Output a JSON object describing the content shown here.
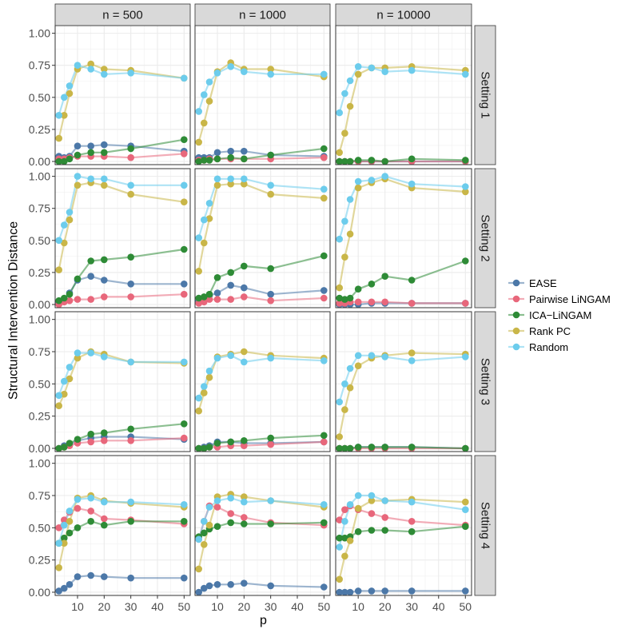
{
  "chart_data": {
    "type": "line",
    "xlabel": "p",
    "ylabel": "Structural Intervention Distance",
    "col_labels": [
      "n = 500",
      "n = 1000",
      "n = 10000"
    ],
    "row_labels": [
      "Setting 1",
      "Setting 2",
      "Setting 3",
      "Setting 4"
    ],
    "x": [
      3,
      5,
      7,
      10,
      15,
      20,
      30,
      50
    ],
    "xlim": [
      1.6,
      52.3
    ],
    "ylim": [
      -0.025,
      1.06
    ],
    "x_ticks": [
      10,
      20,
      30,
      40,
      50
    ],
    "x_tick_labels": [
      "10",
      "20",
      "30",
      "40",
      "50"
    ],
    "y_ticks": [
      0,
      0.25,
      0.5,
      0.75,
      1
    ],
    "y_tick_labels": [
      "0.00",
      "0.25",
      "0.50",
      "0.75",
      "1.00"
    ],
    "grid": true,
    "legend_position": "right",
    "series": [
      {
        "name": "EASE",
        "color": "#4C78A8"
      },
      {
        "name": "Pairwise LiNGAM",
        "color": "#E8677B"
      },
      {
        "name": "ICA−LiNGAM",
        "color": "#2E8B36"
      },
      {
        "name": "Rank PC",
        "color": "#C9B648"
      },
      {
        "name": "Random",
        "color": "#6CCCEC"
      }
    ],
    "panels": [
      [
        {
          "series": {
            "EASE": [
              0.04,
              0.03,
              0.04,
              0.12,
              0.12,
              0.13,
              0.12,
              0.08
            ],
            "Pairwise LiNGAM": [
              0.02,
              0.02,
              0.03,
              0.04,
              0.04,
              0.04,
              0.03,
              0.06
            ],
            "ICA−LiNGAM": [
              0.0,
              0.0,
              0.02,
              0.05,
              0.07,
              0.07,
              0.1,
              0.17
            ],
            "Rank PC": [
              0.18,
              0.36,
              0.53,
              0.72,
              0.76,
              0.72,
              0.71,
              0.65
            ],
            "Random": [
              0.36,
              0.5,
              0.59,
              0.75,
              0.72,
              0.68,
              0.69,
              0.65
            ]
          }
        },
        {
          "series": {
            "EASE": [
              0.03,
              0.03,
              0.03,
              0.07,
              0.08,
              0.08,
              0.05,
              0.04
            ],
            "Pairwise LiNGAM": [
              0.01,
              0.01,
              0.02,
              0.02,
              0.02,
              0.02,
              0.02,
              0.03
            ],
            "ICA−LiNGAM": [
              0.0,
              0.01,
              0.01,
              0.02,
              0.03,
              0.02,
              0.05,
              0.1
            ],
            "Rank PC": [
              0.15,
              0.3,
              0.47,
              0.7,
              0.77,
              0.72,
              0.72,
              0.66
            ],
            "Random": [
              0.39,
              0.52,
              0.62,
              0.69,
              0.74,
              0.7,
              0.68,
              0.68
            ]
          }
        },
        {
          "series": {
            "EASE": [
              0.0,
              0.0,
              0.0,
              0.0,
              0.0,
              0.0,
              0.0,
              0.0
            ],
            "Pairwise LiNGAM": [
              0.0,
              0.0,
              0.0,
              0.0,
              0.0,
              0.0,
              0.0,
              0.0
            ],
            "ICA−LiNGAM": [
              0.0,
              0.0,
              0.0,
              0.01,
              0.01,
              0.0,
              0.02,
              0.01
            ],
            "Rank PC": [
              0.07,
              0.22,
              0.43,
              0.68,
              0.73,
              0.73,
              0.74,
              0.71
            ],
            "Random": [
              0.38,
              0.53,
              0.63,
              0.74,
              0.73,
              0.7,
              0.71,
              0.68
            ]
          }
        }
      ],
      [
        {
          "series": {
            "EASE": [
              0.02,
              0.04,
              0.09,
              0.19,
              0.22,
              0.19,
              0.16,
              0.16
            ],
            "Pairwise LiNGAM": [
              0.0,
              0.02,
              0.03,
              0.04,
              0.04,
              0.06,
              0.06,
              0.08
            ],
            "ICA−LiNGAM": [
              0.03,
              0.05,
              0.08,
              0.2,
              0.34,
              0.35,
              0.37,
              0.43
            ],
            "Rank PC": [
              0.27,
              0.48,
              0.66,
              0.93,
              0.95,
              0.93,
              0.86,
              0.8
            ],
            "Random": [
              0.5,
              0.62,
              0.72,
              1.0,
              0.98,
              0.98,
              0.93,
              0.93
            ]
          }
        },
        {
          "series": {
            "EASE": [
              0.03,
              0.05,
              0.07,
              0.09,
              0.15,
              0.13,
              0.08,
              0.11
            ],
            "Pairwise LiNGAM": [
              0.01,
              0.02,
              0.04,
              0.04,
              0.04,
              0.06,
              0.03,
              0.05
            ],
            "ICA−LiNGAM": [
              0.05,
              0.06,
              0.08,
              0.21,
              0.25,
              0.3,
              0.28,
              0.38
            ],
            "Rank PC": [
              0.26,
              0.48,
              0.67,
              0.93,
              0.94,
              0.94,
              0.86,
              0.83
            ],
            "Random": [
              0.52,
              0.66,
              0.79,
              0.98,
              0.98,
              0.98,
              0.93,
              0.9
            ]
          }
        },
        {
          "series": {
            "EASE": [
              0.0,
              0.0,
              0.0,
              0.0,
              0.01,
              0.01,
              0.01,
              0.01
            ],
            "Pairwise LiNGAM": [
              0.01,
              0.01,
              0.02,
              0.02,
              0.02,
              0.02,
              0.01,
              0.01
            ],
            "ICA−LiNGAM": [
              0.05,
              0.04,
              0.05,
              0.12,
              0.16,
              0.22,
              0.19,
              0.34
            ],
            "Rank PC": [
              0.13,
              0.37,
              0.55,
              0.91,
              0.95,
              0.98,
              0.91,
              0.88
            ],
            "Random": [
              0.51,
              0.65,
              0.82,
              0.96,
              0.97,
              1.0,
              0.94,
              0.92
            ]
          }
        }
      ],
      [
        {
          "series": {
            "EASE": [
              0.0,
              0.02,
              0.03,
              0.06,
              0.08,
              0.09,
              0.09,
              0.07
            ],
            "Pairwise LiNGAM": [
              0.0,
              0.01,
              0.02,
              0.04,
              0.05,
              0.06,
              0.06,
              0.08
            ],
            "ICA−LiNGAM": [
              0.0,
              0.01,
              0.04,
              0.07,
              0.11,
              0.12,
              0.15,
              0.19
            ],
            "Rank PC": [
              0.33,
              0.42,
              0.54,
              0.7,
              0.75,
              0.73,
              0.67,
              0.66
            ],
            "Random": [
              0.41,
              0.52,
              0.63,
              0.74,
              0.74,
              0.71,
              0.67,
              0.67
            ]
          }
        },
        {
          "series": {
            "EASE": [
              0.0,
              0.01,
              0.02,
              0.05,
              0.05,
              0.04,
              0.04,
              0.05
            ],
            "Pairwise LiNGAM": [
              0.0,
              0.0,
              0.01,
              0.01,
              0.02,
              0.02,
              0.03,
              0.05
            ],
            "ICA−LiNGAM": [
              0.0,
              0.0,
              0.01,
              0.04,
              0.05,
              0.06,
              0.08,
              0.1
            ],
            "Rank PC": [
              0.29,
              0.43,
              0.55,
              0.71,
              0.73,
              0.75,
              0.72,
              0.7
            ],
            "Random": [
              0.39,
              0.48,
              0.6,
              0.7,
              0.72,
              0.67,
              0.7,
              0.68
            ]
          }
        },
        {
          "series": {
            "EASE": [
              0.0,
              0.0,
              0.0,
              0.01,
              0.01,
              0.01,
              0.01,
              0.0
            ],
            "Pairwise LiNGAM": [
              0.0,
              0.0,
              0.0,
              0.0,
              0.0,
              0.0,
              0.0,
              0.0
            ],
            "ICA−LiNGAM": [
              0.0,
              0.0,
              0.0,
              0.01,
              0.01,
              0.01,
              0.01,
              0.0
            ],
            "Rank PC": [
              0.09,
              0.3,
              0.47,
              0.64,
              0.7,
              0.72,
              0.74,
              0.73
            ],
            "Random": [
              0.36,
              0.5,
              0.62,
              0.72,
              0.72,
              0.71,
              0.68,
              0.71
            ]
          }
        }
      ],
      [
        {
          "series": {
            "EASE": [
              0.01,
              0.03,
              0.06,
              0.12,
              0.13,
              0.12,
              0.11,
              0.11
            ],
            "Pairwise LiNGAM": [
              0.5,
              0.56,
              0.62,
              0.65,
              0.63,
              0.57,
              0.56,
              0.53
            ],
            "ICA−LiNGAM": [
              0.38,
              0.42,
              0.46,
              0.5,
              0.55,
              0.52,
              0.55,
              0.55
            ],
            "Rank PC": [
              0.19,
              0.38,
              0.55,
              0.73,
              0.75,
              0.71,
              0.69,
              0.66
            ],
            "Random": [
              0.38,
              0.52,
              0.63,
              0.72,
              0.73,
              0.7,
              0.7,
              0.68
            ]
          }
        },
        {
          "series": {
            "EASE": [
              0.0,
              0.03,
              0.05,
              0.06,
              0.06,
              0.07,
              0.05,
              0.04
            ],
            "Pairwise LiNGAM": [
              0.41,
              0.55,
              0.67,
              0.66,
              0.61,
              0.58,
              0.54,
              0.52
            ],
            "ICA−LiNGAM": [
              0.43,
              0.46,
              0.49,
              0.51,
              0.54,
              0.53,
              0.53,
              0.54
            ],
            "Rank PC": [
              0.18,
              0.37,
              0.52,
              0.74,
              0.76,
              0.74,
              0.71,
              0.66
            ],
            "Random": [
              0.41,
              0.55,
              0.66,
              0.71,
              0.73,
              0.7,
              0.71,
              0.68
            ]
          }
        },
        {
          "series": {
            "EASE": [
              0.0,
              0.0,
              0.0,
              0.01,
              0.01,
              0.01,
              0.01,
              0.01
            ],
            "Pairwise LiNGAM": [
              0.56,
              0.64,
              0.67,
              0.64,
              0.61,
              0.58,
              0.55,
              0.52
            ],
            "ICA−LiNGAM": [
              0.42,
              0.42,
              0.43,
              0.47,
              0.48,
              0.48,
              0.47,
              0.51
            ],
            "Rank PC": [
              0.1,
              0.28,
              0.4,
              0.65,
              0.71,
              0.71,
              0.72,
              0.7
            ],
            "Random": [
              0.35,
              0.55,
              0.68,
              0.75,
              0.75,
              0.71,
              0.7,
              0.64
            ]
          }
        }
      ]
    ]
  }
}
